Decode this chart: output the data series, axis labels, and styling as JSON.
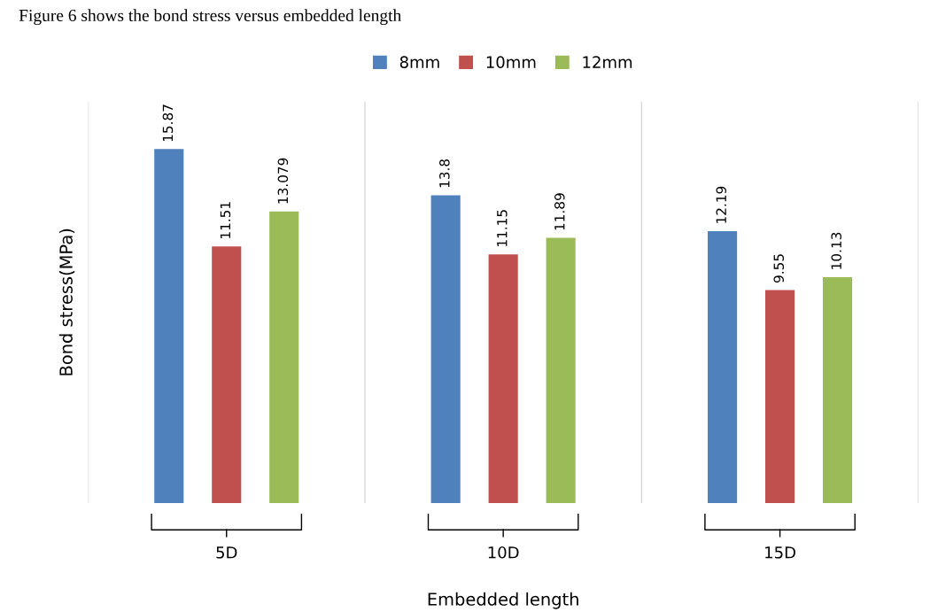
{
  "chart_data": {
    "type": "bar",
    "xlabel": "Embedded length",
    "ylabel": "Bond stress(MPa)",
    "annotations": [
      "Figure 6 shows the bond stress versus embedded length"
    ],
    "categories": [
      "5D",
      "10D",
      "15D"
    ],
    "series": [
      {
        "name": "8mm",
        "color": "#4f81bd",
        "values": [
          15.87,
          13.8,
          12.19
        ]
      },
      {
        "name": "10mm",
        "color": "#c0504d",
        "values": [
          11.51,
          11.15,
          9.55
        ]
      },
      {
        "name": "12mm",
        "color": "#9bbb59",
        "values": [
          13.079,
          11.89,
          10.13
        ]
      }
    ],
    "ylim": [
      0,
      18
    ],
    "data_labels": true,
    "grid": "x",
    "legend": "top",
    "tick_labels": "x"
  }
}
